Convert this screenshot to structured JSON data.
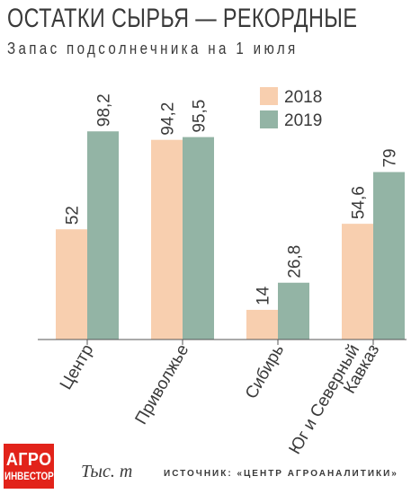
{
  "header": {
    "title": "ОСТАТКИ СЫРЬЯ — РЕКОРДНЫЕ",
    "subtitle": "Запас подсолнечника на 1 июля"
  },
  "footer": {
    "logo_line1": "АГРО",
    "logo_line2": "ИНВЕСТОР",
    "units": "Тыс. т",
    "source": "ИСТОЧНИК: «ЦЕНТР АГРОАНАЛИТИКИ»"
  },
  "colors": {
    "series_2018": "#f8cfaf",
    "series_2019": "#93b4a5",
    "axis": "#555555",
    "text": "#3a3a3a"
  },
  "chart_data": {
    "type": "bar",
    "categories": [
      "Центр",
      "Приволжье",
      "Сибирь",
      "Юг и Северный Кавказ"
    ],
    "category_labels": [
      [
        "Центр"
      ],
      [
        "Приволжье"
      ],
      [
        "Сибирь"
      ],
      [
        "Юг и Северный",
        "Кавказ"
      ]
    ],
    "series": [
      {
        "name": "2018",
        "values": [
          52,
          94.2,
          14,
          54.6
        ],
        "labels": [
          "52",
          "94,2",
          "14",
          "54,6"
        ]
      },
      {
        "name": "2019",
        "values": [
          98.2,
          95.5,
          26.8,
          79
        ],
        "labels": [
          "98,2",
          "95,5",
          "26,8",
          "79"
        ]
      }
    ],
    "ylim": [
      0,
      100
    ],
    "grid": false,
    "legend_position": "top-right",
    "unit": "Тыс. т"
  }
}
